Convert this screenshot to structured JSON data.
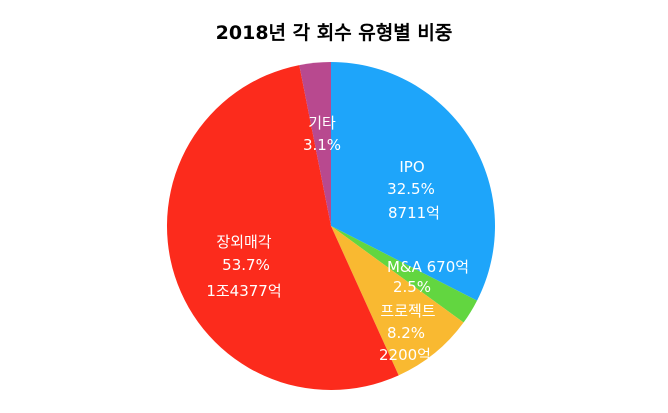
{
  "chart_data": {
    "type": "pie",
    "title": "2018년 각 회수 유형별 비중",
    "slices": [
      {
        "name": "IPO",
        "percent_label": "32.5%",
        "value_label": "8711억",
        "value": 8711,
        "color": "#1ea5fa"
      },
      {
        "name": "M&A",
        "percent_label": "2.5%",
        "value_label": "670억",
        "value": 670,
        "color": "#62d640"
      },
      {
        "name": "프로젝트",
        "percent_label": "8.2%",
        "value_label": "2200억",
        "value": 2200,
        "color": "#f9b931"
      },
      {
        "name": "장외매각",
        "percent_label": "53.7%",
        "value_label": "1조4377억",
        "value": 14377,
        "color": "#fc2b1c"
      },
      {
        "name": "기타",
        "percent_label": "3.1%",
        "value_label": "",
        "value": 830,
        "color": "#b8498f"
      }
    ],
    "legend": "none"
  }
}
